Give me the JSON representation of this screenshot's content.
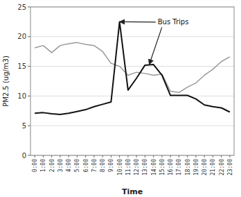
{
  "chart_data": {
    "type": "line",
    "xlabel": "Time",
    "ylabel": "PM2.5 (ug/m3)",
    "categories": [
      "0:00",
      "1:00",
      "2:00",
      "3:00",
      "4:00",
      "5:00",
      "6:00",
      "7:00",
      "8:00",
      "9:00",
      "10:00",
      "11:00",
      "12:00",
      "13:00",
      "14:00",
      "15:00",
      "16:00",
      "17:00",
      "18:00",
      "19:00",
      "20:00",
      "21:00",
      "22:00",
      "23:00"
    ],
    "series": [
      {
        "color": "#999999",
        "values": [
          18.1,
          18.5,
          17.3,
          18.5,
          18.8,
          19.0,
          18.7,
          18.5,
          17.5,
          15.5,
          15.0,
          13.5,
          14.0,
          13.8,
          13.5,
          13.7,
          10.8,
          10.6,
          11.5,
          12.2,
          13.5,
          14.5,
          15.8,
          16.6
        ]
      },
      {
        "color": "#111111",
        "values": [
          7.1,
          7.2,
          7.0,
          6.9,
          7.1,
          7.4,
          7.7,
          8.2,
          8.6,
          9.0,
          22.5,
          11.0,
          13.0,
          15.2,
          15.3,
          13.5,
          10.1,
          10.1,
          10.1,
          9.5,
          8.5,
          8.2,
          8.0,
          7.3
        ]
      }
    ],
    "ylim": [
      0,
      25
    ],
    "yticks": [
      0,
      5,
      10,
      15,
      20,
      25
    ],
    "grid": true,
    "annotations": [
      {
        "text": "Bus Trips",
        "x": 14.5,
        "y": 22.5,
        "arrows": [
          {
            "x": 10.0,
            "y": 22.5
          },
          {
            "x": 13.5,
            "y": 15.3
          }
        ]
      }
    ]
  }
}
